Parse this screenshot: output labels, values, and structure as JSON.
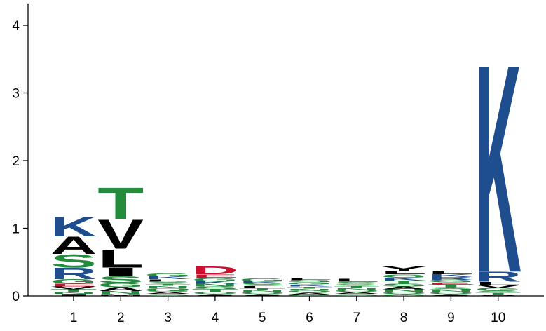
{
  "chart_data": {
    "type": "sequence-logo",
    "title": "",
    "xlabel": "",
    "ylabel": "",
    "ylim": [
      0,
      4.2
    ],
    "yticks": [
      0,
      1,
      2,
      3,
      4
    ],
    "positions": [
      "1",
      "2",
      "3",
      "4",
      "5",
      "6",
      "7",
      "8",
      "9",
      "10"
    ],
    "colors": {
      "K": "#1f4e8f",
      "R": "#1f4e8f",
      "H": "#1f4e8f",
      "A": "#000000",
      "V": "#000000",
      "L": "#000000",
      "I": "#000000",
      "M": "#000000",
      "F": "#000000",
      "W": "#000000",
      "P": "#000000",
      "Y": "#000000",
      "S": "#228b3c",
      "T": "#228b3c",
      "G": "#228b3c",
      "N": "#228b3c",
      "Q": "#228b3c",
      "C": "#228b3c",
      "D": "#c8102e",
      "E": "#c8102e"
    },
    "stacks": [
      [
        {
          "letter": "K",
          "height": 0.3
        },
        {
          "letter": "A",
          "height": 0.26
        },
        {
          "letter": "S",
          "height": 0.2
        },
        {
          "letter": "R",
          "height": 0.17
        },
        {
          "letter": "G",
          "height": 0.07
        },
        {
          "letter": "E",
          "height": 0.04
        },
        {
          "letter": "V",
          "height": 0.04
        },
        {
          "letter": "T",
          "height": 0.04
        },
        {
          "letter": "N",
          "height": 0.03
        },
        {
          "letter": "I",
          "height": 0.03
        }
      ],
      [
        {
          "letter": "T",
          "height": 0.48
        },
        {
          "letter": "V",
          "height": 0.44
        },
        {
          "letter": "L",
          "height": 0.28
        },
        {
          "letter": "I",
          "height": 0.13
        },
        {
          "letter": "S",
          "height": 0.1
        },
        {
          "letter": "G",
          "height": 0.06
        },
        {
          "letter": "A",
          "height": 0.06
        },
        {
          "letter": "N",
          "height": 0.04
        },
        {
          "letter": "M",
          "height": 0.03
        }
      ],
      [
        {
          "letter": "G",
          "height": 0.04
        },
        {
          "letter": "K",
          "height": 0.04
        },
        {
          "letter": "L",
          "height": 0.03
        },
        {
          "letter": "S",
          "height": 0.04
        },
        {
          "letter": "T",
          "height": 0.03
        },
        {
          "letter": "N",
          "height": 0.03
        },
        {
          "letter": "Q",
          "height": 0.03
        },
        {
          "letter": "G",
          "height": 0.03
        },
        {
          "letter": "A",
          "height": 0.03
        },
        {
          "letter": "S",
          "height": 0.03
        }
      ],
      [
        {
          "letter": "D",
          "height": 0.12
        },
        {
          "letter": "E",
          "height": 0.05
        },
        {
          "letter": "G",
          "height": 0.05
        },
        {
          "letter": "K",
          "height": 0.04
        },
        {
          "letter": "N",
          "height": 0.04
        },
        {
          "letter": "S",
          "height": 0.04
        },
        {
          "letter": "T",
          "height": 0.04
        },
        {
          "letter": "Q",
          "height": 0.03
        },
        {
          "letter": "A",
          "height": 0.03
        }
      ],
      [
        {
          "letter": "G",
          "height": 0.04
        },
        {
          "letter": "K",
          "height": 0.03
        },
        {
          "letter": "S",
          "height": 0.04
        },
        {
          "letter": "L",
          "height": 0.03
        },
        {
          "letter": "T",
          "height": 0.03
        },
        {
          "letter": "N",
          "height": 0.03
        },
        {
          "letter": "Q",
          "height": 0.03
        },
        {
          "letter": "A",
          "height": 0.03
        }
      ],
      [
        {
          "letter": "L",
          "height": 0.03
        },
        {
          "letter": "S",
          "height": 0.04
        },
        {
          "letter": "G",
          "height": 0.03
        },
        {
          "letter": "K",
          "height": 0.03
        },
        {
          "letter": "T",
          "height": 0.03
        },
        {
          "letter": "N",
          "height": 0.03
        },
        {
          "letter": "Q",
          "height": 0.03
        },
        {
          "letter": "A",
          "height": 0.03
        },
        {
          "letter": "G",
          "height": 0.02
        }
      ],
      [
        {
          "letter": "L",
          "height": 0.04
        },
        {
          "letter": "S",
          "height": 0.03
        },
        {
          "letter": "G",
          "height": 0.03
        },
        {
          "letter": "T",
          "height": 0.03
        },
        {
          "letter": "N",
          "height": 0.03
        },
        {
          "letter": "Q",
          "height": 0.03
        },
        {
          "letter": "A",
          "height": 0.03
        },
        {
          "letter": "S",
          "height": 0.03
        }
      ],
      [
        {
          "letter": "Y",
          "height": 0.07
        },
        {
          "letter": "L",
          "height": 0.05
        },
        {
          "letter": "G",
          "height": 0.05
        },
        {
          "letter": "K",
          "height": 0.04
        },
        {
          "letter": "T",
          "height": 0.05
        },
        {
          "letter": "S",
          "height": 0.04
        },
        {
          "letter": "A",
          "height": 0.04
        },
        {
          "letter": "N",
          "height": 0.04
        },
        {
          "letter": "Q",
          "height": 0.03
        },
        {
          "letter": "G",
          "height": 0.03
        }
      ],
      [
        {
          "letter": "L",
          "height": 0.04
        },
        {
          "letter": "K",
          "height": 0.04
        },
        {
          "letter": "R",
          "height": 0.04
        },
        {
          "letter": "G",
          "height": 0.04
        },
        {
          "letter": "E",
          "height": 0.03
        },
        {
          "letter": "T",
          "height": 0.04
        },
        {
          "letter": "S",
          "height": 0.04
        },
        {
          "letter": "N",
          "height": 0.03
        },
        {
          "letter": "Q",
          "height": 0.03
        },
        {
          "letter": "A",
          "height": 0.03
        }
      ],
      [
        {
          "letter": "K",
          "height": 3.16
        },
        {
          "letter": "R",
          "height": 0.15
        },
        {
          "letter": "L",
          "height": 0.05
        },
        {
          "letter": "V",
          "height": 0.04
        },
        {
          "letter": "G",
          "height": 0.04
        },
        {
          "letter": "S",
          "height": 0.03
        },
        {
          "letter": "T",
          "height": 0.03
        },
        {
          "letter": "A",
          "height": 0.02
        }
      ]
    ]
  }
}
